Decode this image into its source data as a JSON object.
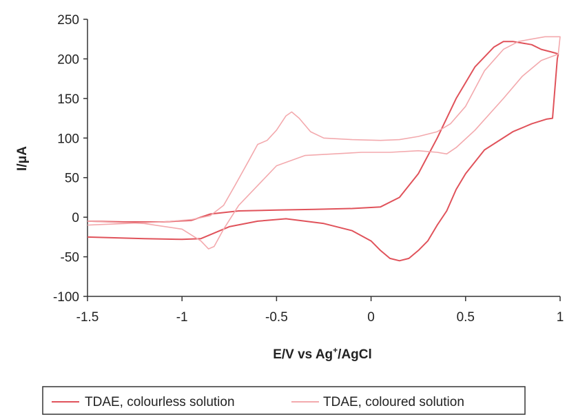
{
  "chart_data": {
    "type": "line",
    "xlabel": "E/V vs Ag",
    "xlabel_sup": "+",
    "xlabel_suffix": "/AgCl",
    "ylabel": "I/μA",
    "xlim": [
      -1.5,
      1
    ],
    "ylim": [
      -100,
      250
    ],
    "x_ticks": [
      -1.5,
      -1,
      -0.5,
      0,
      0.5,
      1
    ],
    "x_tick_labels": [
      "-1.5",
      "-1",
      "-0.5",
      "0",
      "0.5",
      "1"
    ],
    "y_ticks": [
      -100,
      -50,
      0,
      50,
      100,
      150,
      200,
      250
    ],
    "y_tick_labels": [
      "-100",
      "-50",
      "0",
      "50",
      "100",
      "150",
      "200",
      "250"
    ],
    "grid": false,
    "legend_position": "bottom",
    "series": [
      {
        "name": "TDAE, colourless solution",
        "color": "#e0525a",
        "points": [
          [
            -1.5,
            -5
          ],
          [
            -1.3,
            -6
          ],
          [
            -1.1,
            -6
          ],
          [
            -0.95,
            -4
          ],
          [
            -0.85,
            4
          ],
          [
            -0.7,
            8
          ],
          [
            -0.5,
            9
          ],
          [
            -0.3,
            10
          ],
          [
            -0.1,
            11
          ],
          [
            0.05,
            13
          ],
          [
            0.15,
            25
          ],
          [
            0.25,
            55
          ],
          [
            0.35,
            100
          ],
          [
            0.45,
            150
          ],
          [
            0.55,
            190
          ],
          [
            0.65,
            215
          ],
          [
            0.7,
            222
          ],
          [
            0.75,
            222
          ],
          [
            0.8,
            220
          ],
          [
            0.85,
            218
          ],
          [
            0.9,
            212
          ],
          [
            0.95,
            209
          ],
          [
            0.98,
            207
          ],
          [
            0.99,
            206
          ],
          [
            0.985,
            200
          ],
          [
            0.96,
            125
          ],
          [
            0.93,
            124
          ],
          [
            0.85,
            118
          ],
          [
            0.75,
            108
          ],
          [
            0.6,
            85
          ],
          [
            0.5,
            55
          ],
          [
            0.45,
            35
          ],
          [
            0.4,
            8
          ],
          [
            0.35,
            -10
          ],
          [
            0.3,
            -30
          ],
          [
            0.25,
            -42
          ],
          [
            0.2,
            -52
          ],
          [
            0.15,
            -55
          ],
          [
            0.1,
            -52
          ],
          [
            0.05,
            -42
          ],
          [
            0,
            -30
          ],
          [
            -0.1,
            -17
          ],
          [
            -0.25,
            -8
          ],
          [
            -0.45,
            -2
          ],
          [
            -0.6,
            -5
          ],
          [
            -0.75,
            -12
          ],
          [
            -0.85,
            -22
          ],
          [
            -0.9,
            -27
          ],
          [
            -1,
            -28
          ],
          [
            -1.2,
            -27
          ],
          [
            -1.5,
            -25
          ]
        ]
      },
      {
        "name": "TDAE, coloured solution",
        "color": "#f3a9ad",
        "points": [
          [
            -1.5,
            -10
          ],
          [
            -1.3,
            -8
          ],
          [
            -1.1,
            -6
          ],
          [
            -0.95,
            -3
          ],
          [
            -0.85,
            2
          ],
          [
            -0.78,
            15
          ],
          [
            -0.72,
            40
          ],
          [
            -0.65,
            70
          ],
          [
            -0.6,
            92
          ],
          [
            -0.55,
            97
          ],
          [
            -0.5,
            110
          ],
          [
            -0.45,
            128
          ],
          [
            -0.42,
            133
          ],
          [
            -0.38,
            125
          ],
          [
            -0.32,
            108
          ],
          [
            -0.25,
            100
          ],
          [
            -0.1,
            98
          ],
          [
            0.05,
            97
          ],
          [
            0.15,
            98
          ],
          [
            0.25,
            102
          ],
          [
            0.35,
            108
          ],
          [
            0.42,
            118
          ],
          [
            0.5,
            140
          ],
          [
            0.6,
            185
          ],
          [
            0.7,
            212
          ],
          [
            0.78,
            222
          ],
          [
            0.85,
            225
          ],
          [
            0.92,
            228
          ],
          [
            1,
            228
          ],
          [
            0.99,
            206
          ],
          [
            0.9,
            198
          ],
          [
            0.8,
            178
          ],
          [
            0.7,
            150
          ],
          [
            0.55,
            110
          ],
          [
            0.45,
            88
          ],
          [
            0.4,
            80
          ],
          [
            0.35,
            82
          ],
          [
            0.25,
            84
          ],
          [
            0.1,
            82
          ],
          [
            -0.05,
            82
          ],
          [
            -0.2,
            80
          ],
          [
            -0.35,
            78
          ],
          [
            -0.5,
            65
          ],
          [
            -0.6,
            40
          ],
          [
            -0.7,
            15
          ],
          [
            -0.78,
            -15
          ],
          [
            -0.83,
            -37
          ],
          [
            -0.86,
            -40
          ],
          [
            -0.9,
            -30
          ],
          [
            -1,
            -15
          ],
          [
            -1.2,
            -8
          ],
          [
            -1.5,
            -5
          ]
        ]
      }
    ]
  }
}
